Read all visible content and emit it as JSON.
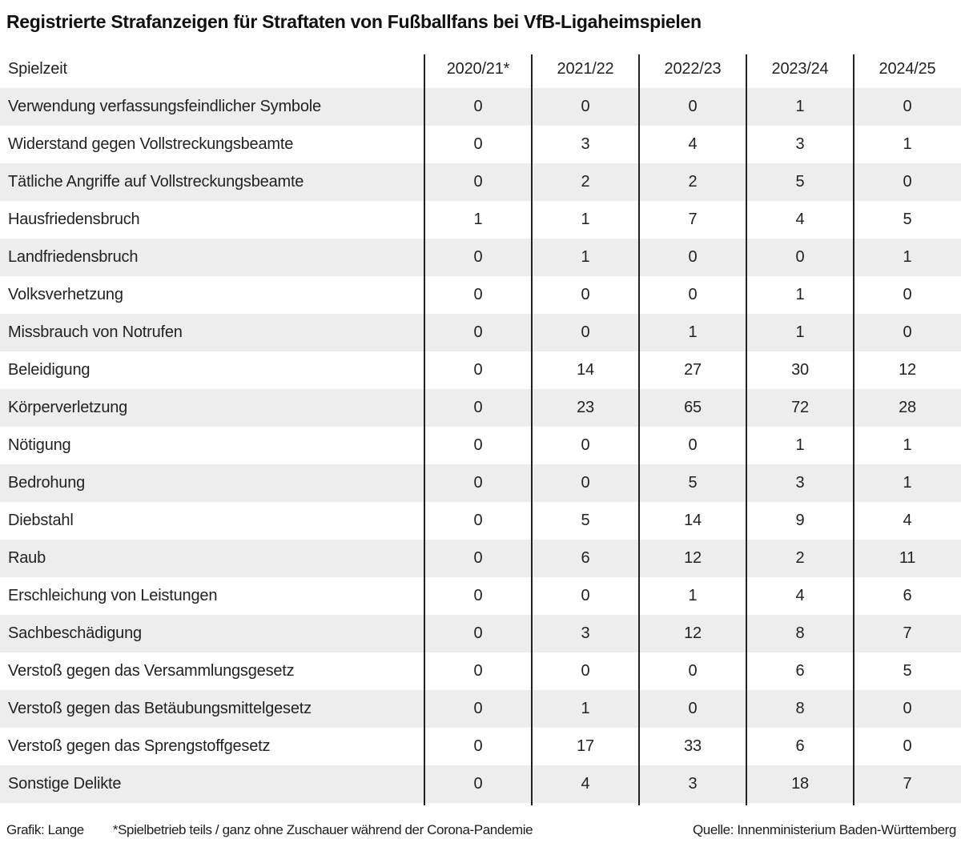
{
  "title": "Registrierte Strafanzeigen für Straftaten von Fußballfans bei VfB-Ligaheimspielen",
  "chart_data": {
    "type": "table",
    "title": "Registrierte Strafanzeigen für Straftaten von Fußballfans bei VfB-Ligaheimspielen",
    "row_header_label": "Spielzeit",
    "columns": [
      "2020/21*",
      "2021/22",
      "2022/23",
      "2023/24",
      "2024/25"
    ],
    "rows": [
      {
        "label": "Verwendung verfassungsfeindlicher Symbole",
        "values": [
          0,
          0,
          0,
          1,
          0
        ]
      },
      {
        "label": "Widerstand gegen Vollstreckungsbeamte",
        "values": [
          0,
          3,
          4,
          3,
          1
        ]
      },
      {
        "label": "Tätliche Angriffe auf Vollstreckungsbeamte",
        "values": [
          0,
          2,
          2,
          5,
          0
        ]
      },
      {
        "label": "Hausfriedensbruch",
        "values": [
          1,
          1,
          7,
          4,
          5
        ]
      },
      {
        "label": "Landfriedensbruch",
        "values": [
          0,
          1,
          0,
          0,
          1
        ]
      },
      {
        "label": "Volksverhetzung",
        "values": [
          0,
          0,
          0,
          1,
          0
        ]
      },
      {
        "label": "Missbrauch von Notrufen",
        "values": [
          0,
          0,
          1,
          1,
          0
        ]
      },
      {
        "label": "Beleidigung",
        "values": [
          0,
          14,
          27,
          30,
          12
        ]
      },
      {
        "label": "Körperverletzung",
        "values": [
          0,
          23,
          65,
          72,
          28
        ]
      },
      {
        "label": "Nötigung",
        "values": [
          0,
          0,
          0,
          1,
          1
        ]
      },
      {
        "label": "Bedrohung",
        "values": [
          0,
          0,
          5,
          3,
          1
        ]
      },
      {
        "label": "Diebstahl",
        "values": [
          0,
          5,
          14,
          9,
          4
        ]
      },
      {
        "label": "Raub",
        "values": [
          0,
          6,
          12,
          2,
          11
        ]
      },
      {
        "label": "Erschleichung von Leistungen",
        "values": [
          0,
          0,
          1,
          4,
          6
        ]
      },
      {
        "label": "Sachbeschädigung",
        "values": [
          0,
          3,
          12,
          8,
          7
        ]
      },
      {
        "label": "Verstoß gegen das Versammlungsgesetz",
        "values": [
          0,
          0,
          0,
          6,
          5
        ]
      },
      {
        "label": "Verstoß gegen das Betäubungsmittelgesetz",
        "values": [
          0,
          1,
          0,
          8,
          0
        ]
      },
      {
        "label": "Verstoß gegen das Sprengstoffgesetz",
        "values": [
          0,
          17,
          33,
          6,
          0
        ]
      },
      {
        "label": "Sonstige Delikte",
        "values": [
          0,
          4,
          3,
          18,
          7
        ]
      }
    ],
    "layout": {
      "striped_rows": true,
      "stripe_starts_on_first_data_row": true,
      "column_dividers": true
    }
  },
  "footer": {
    "credit": "Grafik: Lange",
    "footnote": "*Spielbetrieb teils / ganz ohne Zuschauer während der Corona-Pandemie",
    "source": "Quelle: Innenministerium Baden-Württemberg"
  },
  "colors": {
    "background": "#ffffff",
    "row_alt": "#ededed",
    "divider": "#222222",
    "text": "#222222",
    "title_text": "#111111"
  }
}
